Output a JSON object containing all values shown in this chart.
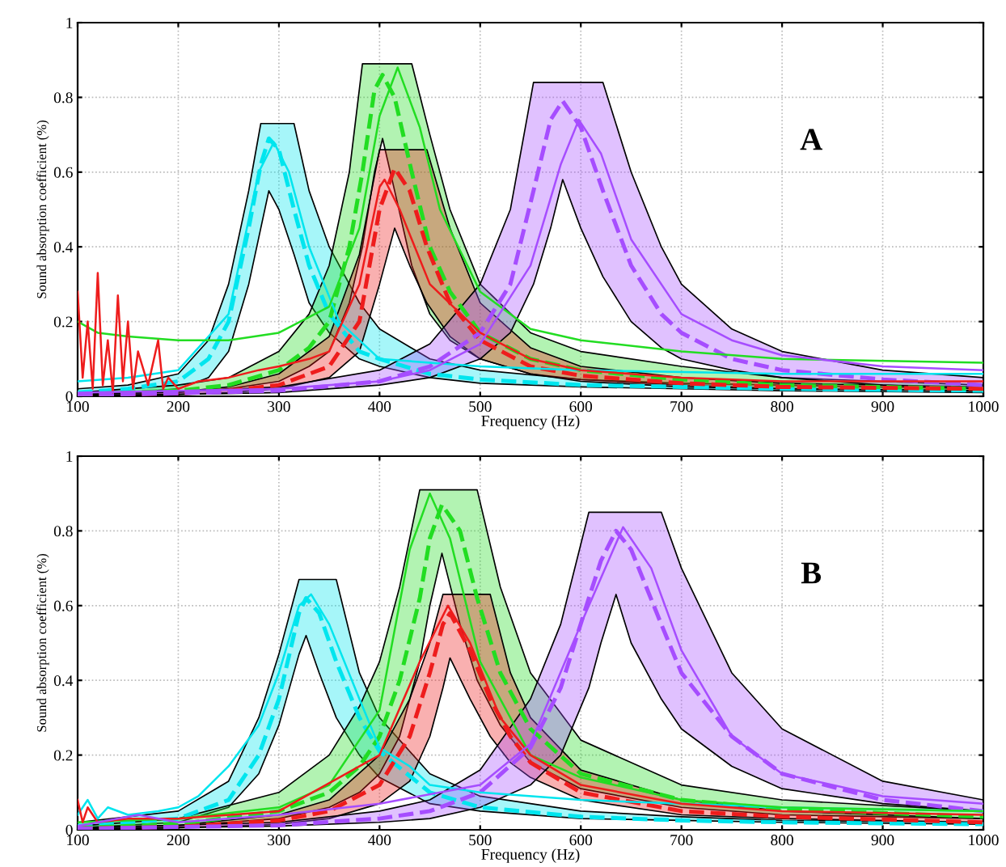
{
  "chart_data": [
    {
      "type": "line",
      "annotations": [
        "A"
      ],
      "xlabel": "Frequency (Hz)",
      "ylabel": "Sound absorption coefficient (%)",
      "xlim": [
        100,
        1000
      ],
      "ylim": [
        0,
        1
      ],
      "xticks": [
        100,
        200,
        300,
        400,
        500,
        600,
        700,
        800,
        900,
        1000
      ],
      "yticks": [
        0,
        0.2,
        0.4,
        0.6,
        0.8,
        1
      ],
      "grid": true,
      "marker": "none",
      "series": [
        {
          "color": "#00e5ee",
          "line_style": "dashed",
          "x": [
            100,
            150,
            200,
            230,
            250,
            270,
            282,
            290,
            300,
            315,
            330,
            350,
            380,
            400,
            450,
            500,
            600,
            700,
            800,
            1000
          ],
          "values": [
            0.01,
            0.02,
            0.04,
            0.1,
            0.2,
            0.45,
            0.62,
            0.69,
            0.66,
            0.5,
            0.35,
            0.22,
            0.12,
            0.1,
            0.06,
            0.045,
            0.03,
            0.025,
            0.02,
            0.015
          ],
          "lower": [
            0.005,
            0.01,
            0.02,
            0.05,
            0.12,
            0.3,
            0.45,
            0.55,
            0.5,
            0.38,
            0.25,
            0.17,
            0.1,
            0.08,
            0.05,
            0.035,
            0.025,
            0.02,
            0.015,
            0.01
          ],
          "upper": [
            0.02,
            0.03,
            0.06,
            0.15,
            0.3,
            0.55,
            0.73,
            0.73,
            0.73,
            0.73,
            0.55,
            0.4,
            0.25,
            0.18,
            0.1,
            0.07,
            0.045,
            0.035,
            0.03,
            0.02
          ]
        },
        {
          "color": "#22dd22",
          "line_style": "dashed",
          "x": [
            100,
            200,
            250,
            300,
            330,
            350,
            370,
            383,
            395,
            403,
            415,
            432,
            450,
            470,
            500,
            550,
            600,
            700,
            800,
            1000
          ],
          "values": [
            0.005,
            0.015,
            0.03,
            0.07,
            0.13,
            0.2,
            0.4,
            0.6,
            0.82,
            0.86,
            0.8,
            0.6,
            0.4,
            0.28,
            0.17,
            0.1,
            0.07,
            0.045,
            0.03,
            0.02
          ],
          "lower": [
            0.005,
            0.01,
            0.02,
            0.04,
            0.08,
            0.12,
            0.25,
            0.4,
            0.6,
            0.69,
            0.55,
            0.35,
            0.22,
            0.15,
            0.1,
            0.06,
            0.045,
            0.03,
            0.02,
            0.015
          ],
          "upper": [
            0.01,
            0.03,
            0.05,
            0.12,
            0.22,
            0.35,
            0.6,
            0.89,
            0.89,
            0.89,
            0.89,
            0.89,
            0.7,
            0.5,
            0.3,
            0.17,
            0.12,
            0.08,
            0.05,
            0.03
          ]
        },
        {
          "color": "#ee1c1c",
          "line_style": "dashed",
          "x": [
            100,
            200,
            250,
            300,
            350,
            380,
            400,
            415,
            430,
            447,
            470,
            500,
            550,
            600,
            700,
            800,
            1000
          ],
          "values": [
            0.003,
            0.008,
            0.015,
            0.03,
            0.08,
            0.2,
            0.5,
            0.61,
            0.55,
            0.4,
            0.25,
            0.15,
            0.08,
            0.055,
            0.035,
            0.025,
            0.02
          ],
          "lower": [
            0.002,
            0.005,
            0.01,
            0.02,
            0.05,
            0.12,
            0.3,
            0.45,
            0.35,
            0.25,
            0.16,
            0.1,
            0.06,
            0.04,
            0.025,
            0.02,
            0.015
          ],
          "upper": [
            0.005,
            0.012,
            0.025,
            0.06,
            0.16,
            0.38,
            0.66,
            0.66,
            0.66,
            0.66,
            0.45,
            0.25,
            0.13,
            0.08,
            0.05,
            0.035,
            0.025
          ]
        },
        {
          "color": "#a64dff",
          "line_style": "dashed",
          "x": [
            100,
            200,
            300,
            400,
            450,
            500,
            530,
            553,
            570,
            582,
            600,
            622,
            650,
            680,
            700,
            750,
            800,
            900,
            1000
          ],
          "values": [
            0.003,
            0.008,
            0.015,
            0.04,
            0.08,
            0.17,
            0.3,
            0.55,
            0.74,
            0.79,
            0.72,
            0.55,
            0.35,
            0.22,
            0.17,
            0.1,
            0.07,
            0.045,
            0.03
          ],
          "lower": [
            0.002,
            0.005,
            0.01,
            0.03,
            0.05,
            0.1,
            0.17,
            0.3,
            0.45,
            0.58,
            0.45,
            0.32,
            0.2,
            0.13,
            0.1,
            0.07,
            0.05,
            0.03,
            0.02
          ],
          "upper": [
            0.005,
            0.012,
            0.025,
            0.07,
            0.14,
            0.3,
            0.5,
            0.84,
            0.84,
            0.84,
            0.84,
            0.84,
            0.6,
            0.4,
            0.3,
            0.18,
            0.12,
            0.07,
            0.05
          ]
        },
        {
          "color": "#00e5ee",
          "line_style": "solid",
          "x": [
            100,
            150,
            200,
            250,
            280,
            295,
            310,
            330,
            360,
            400,
            450,
            500,
            600,
            800,
            1000
          ],
          "values": [
            0.04,
            0.05,
            0.07,
            0.22,
            0.6,
            0.68,
            0.6,
            0.4,
            0.2,
            0.1,
            0.09,
            0.08,
            0.07,
            0.06,
            0.06
          ]
        },
        {
          "color": "#22dd22",
          "line_style": "solid",
          "x": [
            100,
            120,
            150,
            200,
            250,
            300,
            350,
            380,
            400,
            418,
            440,
            460,
            500,
            550,
            600,
            700,
            800,
            1000
          ],
          "values": [
            0.2,
            0.17,
            0.16,
            0.15,
            0.15,
            0.17,
            0.24,
            0.45,
            0.75,
            0.88,
            0.72,
            0.5,
            0.28,
            0.18,
            0.15,
            0.12,
            0.1,
            0.09
          ]
        },
        {
          "color": "#ee1c1c",
          "line_style": "solid",
          "x": [
            100,
            105,
            110,
            115,
            120,
            125,
            130,
            135,
            140,
            145,
            150,
            155,
            160,
            170,
            180,
            185,
            190,
            200,
            220,
            250,
            280,
            300,
            330,
            350,
            380,
            400,
            405,
            420,
            450,
            500,
            550,
            600,
            700,
            800,
            1000
          ],
          "values": [
            0.28,
            0.05,
            0.2,
            0.02,
            0.33,
            0.03,
            0.15,
            0.01,
            0.27,
            0.04,
            0.2,
            0.02,
            0.12,
            0.03,
            0.15,
            0.02,
            0.05,
            0.02,
            0.04,
            0.05,
            0.07,
            0.08,
            0.1,
            0.12,
            0.3,
            0.56,
            0.58,
            0.5,
            0.3,
            0.17,
            0.1,
            0.07,
            0.05,
            0.04,
            0.04
          ]
        },
        {
          "color": "#a64dff",
          "line_style": "solid",
          "x": [
            100,
            300,
            400,
            450,
            500,
            550,
            580,
            598,
            620,
            650,
            700,
            750,
            800,
            900,
            1000
          ],
          "values": [
            0.01,
            0.02,
            0.04,
            0.07,
            0.14,
            0.35,
            0.62,
            0.74,
            0.65,
            0.42,
            0.22,
            0.15,
            0.11,
            0.08,
            0.07
          ]
        }
      ]
    },
    {
      "type": "line",
      "annotations": [
        "B"
      ],
      "xlabel": "Frequency (Hz)",
      "ylabel": "Sound absorption coefficient (%)",
      "xlim": [
        100,
        1000
      ],
      "ylim": [
        0,
        1
      ],
      "xticks": [
        100,
        200,
        300,
        400,
        500,
        600,
        700,
        800,
        900,
        1000
      ],
      "yticks": [
        0,
        0.2,
        0.4,
        0.6,
        0.8,
        1
      ],
      "grid": true,
      "marker": "none",
      "series": [
        {
          "color": "#00e5ee",
          "line_style": "dashed",
          "x": [
            100,
            200,
            250,
            280,
            300,
            320,
            327,
            340,
            357,
            380,
            400,
            450,
            500,
            600,
            700,
            800,
            1000
          ],
          "values": [
            0.01,
            0.03,
            0.08,
            0.2,
            0.35,
            0.58,
            0.62,
            0.58,
            0.45,
            0.3,
            0.21,
            0.1,
            0.06,
            0.035,
            0.025,
            0.02,
            0.015
          ],
          "lower": [
            0.005,
            0.02,
            0.06,
            0.15,
            0.28,
            0.47,
            0.52,
            0.42,
            0.3,
            0.2,
            0.14,
            0.07,
            0.05,
            0.03,
            0.025,
            0.02,
            0.015
          ],
          "upper": [
            0.02,
            0.05,
            0.13,
            0.3,
            0.47,
            0.67,
            0.67,
            0.67,
            0.67,
            0.42,
            0.3,
            0.15,
            0.09,
            0.05,
            0.035,
            0.025,
            0.02
          ]
        },
        {
          "color": "#22dd22",
          "line_style": "dashed",
          "x": [
            100,
            200,
            300,
            350,
            380,
            400,
            420,
            440,
            450,
            462,
            480,
            497,
            520,
            550,
            600,
            700,
            800,
            1000
          ],
          "values": [
            0.005,
            0.015,
            0.05,
            0.1,
            0.17,
            0.25,
            0.4,
            0.62,
            0.78,
            0.87,
            0.8,
            0.62,
            0.42,
            0.27,
            0.15,
            0.08,
            0.055,
            0.035
          ],
          "lower": [
            0.005,
            0.01,
            0.03,
            0.06,
            0.1,
            0.15,
            0.25,
            0.45,
            0.6,
            0.74,
            0.55,
            0.4,
            0.28,
            0.18,
            0.11,
            0.06,
            0.04,
            0.03
          ],
          "upper": [
            0.01,
            0.03,
            0.1,
            0.2,
            0.33,
            0.45,
            0.65,
            0.91,
            0.91,
            0.91,
            0.91,
            0.91,
            0.65,
            0.42,
            0.24,
            0.12,
            0.08,
            0.05
          ]
        },
        {
          "color": "#ee1c1c",
          "line_style": "dashed",
          "x": [
            100,
            200,
            300,
            350,
            400,
            430,
            450,
            463,
            470,
            490,
            510,
            530,
            550,
            600,
            700,
            800,
            1000
          ],
          "values": [
            0.003,
            0.008,
            0.025,
            0.05,
            0.12,
            0.25,
            0.42,
            0.55,
            0.58,
            0.48,
            0.35,
            0.25,
            0.18,
            0.1,
            0.05,
            0.035,
            0.02
          ],
          "lower": [
            0.002,
            0.005,
            0.015,
            0.03,
            0.07,
            0.13,
            0.25,
            0.38,
            0.46,
            0.35,
            0.25,
            0.18,
            0.14,
            0.08,
            0.04,
            0.03,
            0.02
          ],
          "upper": [
            0.005,
            0.012,
            0.04,
            0.08,
            0.2,
            0.35,
            0.5,
            0.63,
            0.63,
            0.63,
            0.63,
            0.42,
            0.3,
            0.16,
            0.08,
            0.05,
            0.03
          ]
        },
        {
          "color": "#a64dff",
          "line_style": "dashed",
          "x": [
            100,
            300,
            400,
            450,
            500,
            550,
            580,
            608,
            620,
            635,
            650,
            680,
            700,
            750,
            800,
            900,
            1000
          ],
          "values": [
            0.003,
            0.012,
            0.03,
            0.05,
            0.1,
            0.22,
            0.38,
            0.62,
            0.72,
            0.8,
            0.75,
            0.55,
            0.42,
            0.25,
            0.15,
            0.08,
            0.05
          ],
          "lower": [
            0.002,
            0.01,
            0.02,
            0.03,
            0.06,
            0.12,
            0.2,
            0.38,
            0.5,
            0.63,
            0.5,
            0.35,
            0.27,
            0.17,
            0.11,
            0.07,
            0.05
          ],
          "upper": [
            0.005,
            0.02,
            0.05,
            0.08,
            0.16,
            0.35,
            0.55,
            0.85,
            0.85,
            0.85,
            0.85,
            0.85,
            0.7,
            0.42,
            0.27,
            0.13,
            0.08
          ]
        },
        {
          "color": "#00e5ee",
          "line_style": "solid",
          "x": [
            100,
            110,
            120,
            130,
            150,
            180,
            200,
            220,
            250,
            280,
            300,
            320,
            332,
            350,
            380,
            400,
            430,
            450,
            500,
            600,
            800,
            1000
          ],
          "values": [
            0.04,
            0.08,
            0.03,
            0.06,
            0.04,
            0.05,
            0.06,
            0.09,
            0.17,
            0.28,
            0.42,
            0.6,
            0.63,
            0.55,
            0.35,
            0.22,
            0.17,
            0.12,
            0.1,
            0.08,
            0.06,
            0.05
          ]
        },
        {
          "color": "#22dd22",
          "line_style": "solid",
          "x": [
            100,
            200,
            300,
            350,
            400,
            430,
            450,
            470,
            500,
            550,
            600,
            700,
            800,
            1000
          ],
          "values": [
            0.02,
            0.03,
            0.06,
            0.12,
            0.32,
            0.75,
            0.9,
            0.78,
            0.45,
            0.2,
            0.14,
            0.08,
            0.06,
            0.05
          ]
        },
        {
          "color": "#ee1c1c",
          "line_style": "solid",
          "x": [
            100,
            105,
            110,
            120,
            150,
            200,
            300,
            400,
            440,
            468,
            490,
            520,
            550,
            600,
            700,
            800,
            1000
          ],
          "values": [
            0.08,
            0.02,
            0.06,
            0.02,
            0.03,
            0.03,
            0.05,
            0.2,
            0.45,
            0.6,
            0.5,
            0.3,
            0.2,
            0.12,
            0.07,
            0.05,
            0.04
          ]
        },
        {
          "color": "#a64dff",
          "line_style": "solid",
          "x": [
            100,
            160,
            200,
            300,
            400,
            500,
            550,
            600,
            642,
            670,
            700,
            750,
            800,
            900,
            1000
          ],
          "values": [
            0.01,
            0.04,
            0.02,
            0.04,
            0.07,
            0.12,
            0.23,
            0.55,
            0.81,
            0.7,
            0.48,
            0.25,
            0.15,
            0.09,
            0.07
          ]
        }
      ]
    }
  ]
}
